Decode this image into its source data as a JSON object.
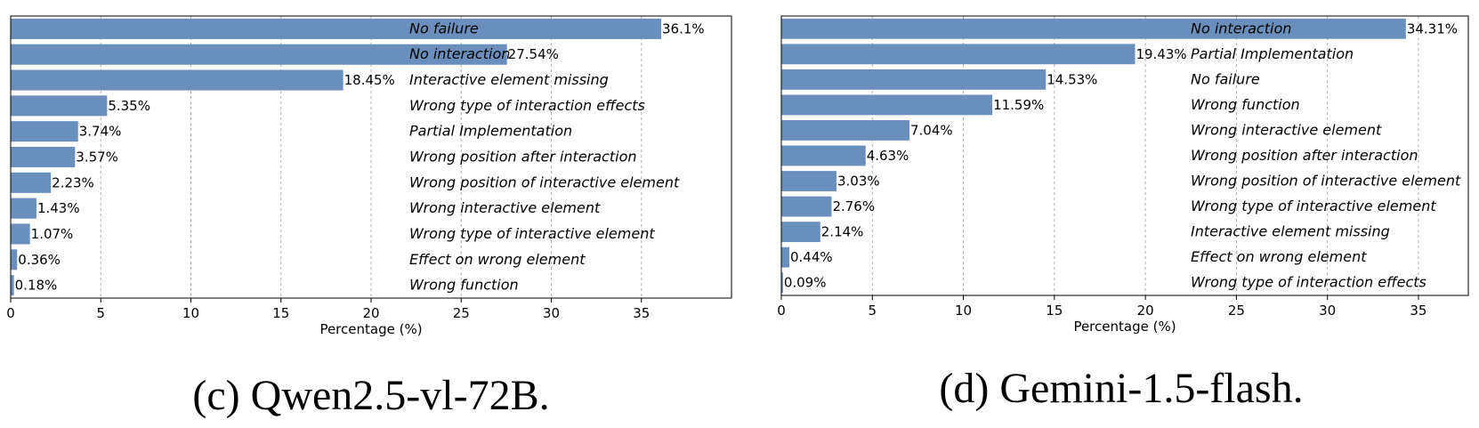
{
  "chart_data": [
    {
      "type": "bar",
      "orientation": "horizontal",
      "title": "",
      "xlabel": "Percentage (%)",
      "ylabel": "",
      "xlim": [
        0,
        40
      ],
      "xticks": [
        0,
        5,
        10,
        15,
        20,
        25,
        30,
        35
      ],
      "grid": "x-dashed",
      "bar_color": "#6a8fbd",
      "categories": [
        "No failure",
        "No interaction",
        "Interactive element missing",
        "Wrong type of interaction effects",
        "Partial Implementation",
        "Wrong position after interaction",
        "Wrong position of interactive element",
        "Wrong interactive element",
        "Wrong type of interactive element",
        "Effect on wrong element",
        "Wrong function"
      ],
      "values": [
        36.1,
        27.54,
        18.45,
        5.35,
        3.74,
        3.57,
        2.23,
        1.43,
        1.07,
        0.36,
        0.18
      ],
      "value_labels": [
        "36.1%",
        "27.54%",
        "18.45%",
        "5.35%",
        "3.74%",
        "3.57%",
        "2.23%",
        "1.43%",
        "1.07%",
        "0.36%",
        "0.18%"
      ],
      "caption": "(c)  Qwen2.5-vl-72B."
    },
    {
      "type": "bar",
      "orientation": "horizontal",
      "title": "",
      "xlabel": "Percentage (%)",
      "ylabel": "",
      "xlim": [
        0,
        37.74
      ],
      "xticks": [
        0,
        5,
        10,
        15,
        20,
        25,
        30,
        35
      ],
      "grid": "x-dashed",
      "bar_color": "#6a8fbd",
      "categories": [
        "No interaction",
        "Partial Implementation",
        "No failure",
        "Wrong function",
        "Wrong interactive element",
        "Wrong position after interaction",
        "Wrong position of interactive element",
        "Wrong type of interactive element",
        "Interactive element missing",
        "Effect on wrong element",
        "Wrong type of interaction effects"
      ],
      "values": [
        34.31,
        19.43,
        14.53,
        11.59,
        7.04,
        4.63,
        3.03,
        2.76,
        2.14,
        0.44,
        0.09
      ],
      "value_labels": [
        "34.31%",
        "19.43%",
        "14.53%",
        "11.59%",
        "7.04%",
        "4.63%",
        "3.03%",
        "2.76%",
        "2.14%",
        "0.44%",
        "0.09%"
      ],
      "caption": "(d)  Gemini-1.5-flash."
    }
  ]
}
